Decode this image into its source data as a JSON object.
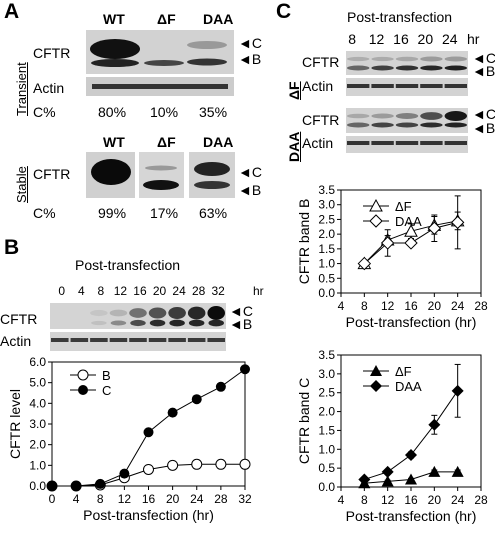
{
  "panel_a": {
    "letter": "A",
    "transient_label": "Transient",
    "stable_label": "Stable",
    "headers_transient": [
      "WT",
      "ΔF",
      "DAA"
    ],
    "headers_stable": [
      "WT",
      "ΔF",
      "DAA"
    ],
    "row_cftr": "CFTR",
    "row_actin": "Actin",
    "c_label": "C%",
    "transient_pct": [
      "80%",
      "10%",
      "35%"
    ],
    "stable_pct": [
      "99%",
      "17%",
      "63%"
    ],
    "band_c": "C",
    "band_b": "B"
  },
  "panel_b": {
    "letter": "B",
    "post_transfection": "Post-transfection",
    "times": [
      "0",
      "4",
      "8",
      "12",
      "16",
      "20",
      "24",
      "28",
      "32"
    ],
    "hr": "hr",
    "row_cftr": "CFTR",
    "row_actin": "Actin",
    "band_c": "C",
    "band_b": "B"
  },
  "panel_c": {
    "letter": "C",
    "post_transfection": "Post-transfection",
    "times": [
      "8",
      "12",
      "16",
      "20",
      "24"
    ],
    "hr": "hr",
    "df_label": "ΔF",
    "daa_label": "DAA",
    "row_cftr": "CFTR",
    "row_actin": "Actin",
    "band_c": "C",
    "band_b": "B"
  },
  "chart_data": [
    {
      "type": "line",
      "ylabel": "CFTR level",
      "xlabel": "Post-transfection (hr)",
      "x": [
        0,
        4,
        8,
        12,
        16,
        20,
        24,
        28,
        32
      ],
      "xticks": [
        "0",
        "4",
        "8",
        "12",
        "16",
        "20",
        "24",
        "28",
        "32"
      ],
      "yticks": [
        "0.0",
        "1.0",
        "2.0",
        "3.0",
        "4.0",
        "5.0",
        "6.0"
      ],
      "xlim": [
        0,
        32
      ],
      "ylim": [
        0,
        6
      ],
      "legend": "top-left",
      "series": [
        {
          "name": "B",
          "marker": "open-circle",
          "values": [
            0.0,
            0.0,
            0.05,
            0.4,
            0.8,
            1.0,
            1.05,
            1.05,
            1.05
          ]
        },
        {
          "name": "C",
          "marker": "filled-circle",
          "values": [
            0.0,
            0.0,
            0.1,
            0.6,
            2.6,
            3.55,
            4.2,
            4.8,
            5.65
          ]
        }
      ]
    },
    {
      "type": "line",
      "ylabel": "CFTR band B",
      "xlabel": "Post-transfection (hr)",
      "x": [
        8,
        12,
        16,
        20,
        24
      ],
      "xticks": [
        "4",
        "8",
        "12",
        "16",
        "20",
        "24",
        "28"
      ],
      "yticks": [
        "0.0",
        "0.5",
        "1.0",
        "1.5",
        "2.0",
        "2.5",
        "3.0",
        "3.5"
      ],
      "xlim": [
        4,
        28
      ],
      "ylim": [
        0,
        3.5
      ],
      "legend": "top-left",
      "series": [
        {
          "name": "ΔF",
          "marker": "open-triangle",
          "values": [
            1.0,
            1.8,
            2.1,
            2.3,
            2.45
          ],
          "err": [
            0.05,
            0.15,
            0.25,
            0.3,
            0.3
          ]
        },
        {
          "name": "DAA",
          "marker": "open-diamond",
          "values": [
            1.0,
            1.7,
            1.7,
            2.2,
            2.4
          ],
          "err": [
            0.05,
            0.45,
            0.1,
            0.45,
            0.9
          ]
        }
      ]
    },
    {
      "type": "line",
      "ylabel": "CFTR band C",
      "xlabel": "Post-transfection (hr)",
      "x": [
        8,
        12,
        16,
        20,
        24
      ],
      "xticks": [
        "4",
        "8",
        "12",
        "16",
        "20",
        "24",
        "28"
      ],
      "yticks": [
        "0.0",
        "0.5",
        "1.0",
        "1.5",
        "2.0",
        "2.5",
        "3.0",
        "3.5"
      ],
      "xlim": [
        4,
        28
      ],
      "ylim": [
        0,
        3.5
      ],
      "legend": "top-left",
      "series": [
        {
          "name": "ΔF",
          "marker": "filled-triangle",
          "values": [
            0.1,
            0.15,
            0.2,
            0.4,
            0.4
          ],
          "err": [
            0.02,
            0.03,
            0.03,
            0.05,
            0.05
          ]
        },
        {
          "name": "DAA",
          "marker": "filled-diamond",
          "values": [
            0.2,
            0.4,
            0.85,
            1.65,
            2.55
          ],
          "err": [
            0.03,
            0.05,
            0.08,
            0.25,
            0.7
          ]
        }
      ]
    }
  ]
}
